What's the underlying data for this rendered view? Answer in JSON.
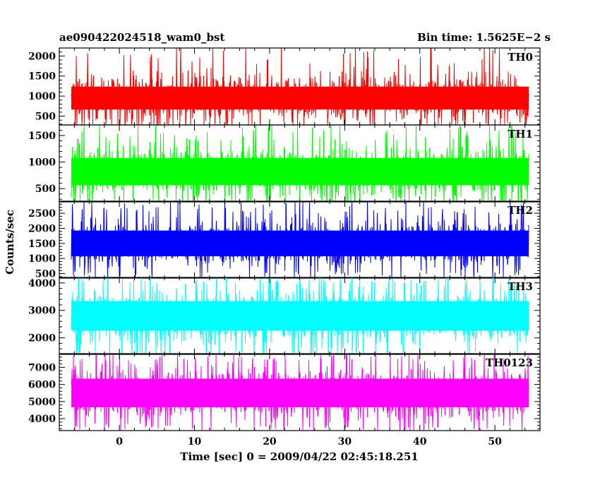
{
  "header": {
    "title": "ae090422024518_wam0_bst",
    "bin_time": "Bin time: 1.5625E−2 s"
  },
  "axes": {
    "ylabel": "Counts/sec",
    "xlabel": "Time [sec] 0 = 2009/04/22 02:45:18.251"
  },
  "chart_data": {
    "type": "line",
    "x_range": [
      -8,
      56
    ],
    "x_ticks": [
      0,
      10,
      20,
      30,
      40,
      50
    ],
    "panels": [
      {
        "name": "TH0",
        "color": "#ff0000",
        "ylim": [
          280,
          2200
        ],
        "yticks": [
          500,
          1000,
          1500,
          2000
        ],
        "level": [
          300,
          1600
        ],
        "mean": 950
      },
      {
        "name": "TH1",
        "color": "#00ff00",
        "ylim": [
          250,
          1700
        ],
        "yticks": [
          500,
          1000,
          1500
        ],
        "level": [
          230,
          1400
        ],
        "mean": 820
      },
      {
        "name": "TH2",
        "color": "#0000ff",
        "ylim": [
          350,
          2900
        ],
        "yticks": [
          500,
          1000,
          1500,
          2000,
          2500
        ],
        "level": [
          560,
          2500
        ],
        "mean": 1500
      },
      {
        "name": "TH3",
        "color": "#00ffff",
        "ylim": [
          1400,
          4200
        ],
        "yticks": [
          2000,
          3000,
          4000
        ],
        "level": [
          1500,
          3950
        ],
        "mean": 2800
      },
      {
        "name": "TH0123",
        "color": "#ff00ff",
        "ylim": [
          3300,
          7800
        ],
        "yticks": [
          4000,
          5000,
          6000,
          7000
        ],
        "level": [
          3600,
          7400
        ],
        "mean": 5500
      }
    ]
  }
}
